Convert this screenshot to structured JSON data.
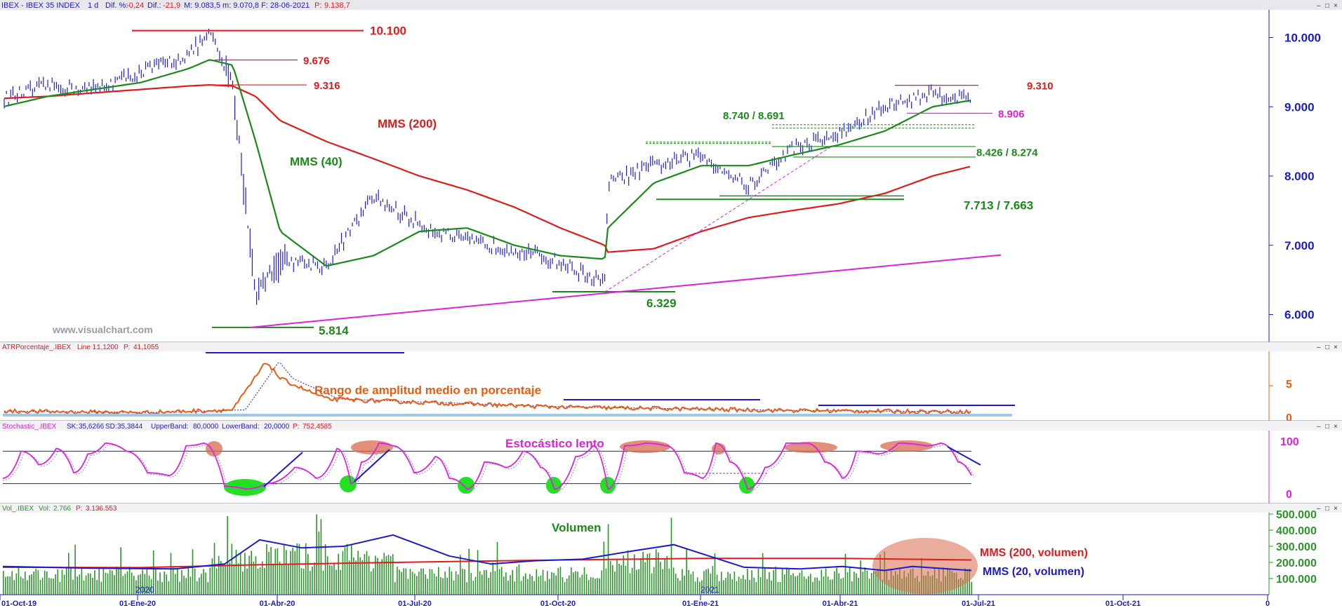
{
  "colors": {
    "price": "#1a1aee",
    "ma40": "#1a8a1a",
    "ma200": "#e11a1a",
    "trend": "#e020e0",
    "atr": "#f05a10",
    "blue": "#1a1ad0",
    "green_label": "#1a8a1a",
    "red_label": "#e11a1a",
    "magenta_label": "#e020e0",
    "axis": "#1a1ad0",
    "volume_bar": "#2a962a",
    "highlight_red": "#d9694c",
    "highlight_green": "#22e022",
    "watermark": "#9a9aa8"
  },
  "panels": {
    "price": {
      "header": {
        "name": "IBEX - IBEX 35 INDEX",
        "period": "1 d",
        "dif_pct_label": "Dif. %:",
        "dif_pct": "-0,24",
        "dif_label": "Dif.:",
        "dif": "-21,9",
        "ohlc": "M: 9.083,5  m: 9.070,8  F: 28-06-2021",
        "p_label": "P:",
        "p_value": "9.138,7"
      },
      "y_ticks": [
        "10.000",
        "9.000",
        "8.000",
        "7.000",
        "6.000"
      ],
      "levels": {
        "l1": "10.100",
        "l2": "9.676",
        "l3": "9.316",
        "l4": "9.310",
        "l5": "8.906",
        "l6": "8.740 / 8.691",
        "l7": "8.426 / 8.274",
        "l8": "7.713 / 7.663",
        "l9": "6.329",
        "l10": "5.814"
      },
      "labels": {
        "ma200": "MMS (200)",
        "ma40": "MMS (40)"
      },
      "watermark": "www.visualchart.com"
    },
    "atr": {
      "header": {
        "name": "ATRPorcentaje_.IBEX",
        "line_label": "Line 1:",
        "line_value": "1,1200",
        "p_label": "P:",
        "p_value": "41,1055"
      },
      "y_ticks": [
        "5",
        "0"
      ],
      "annotation": "Rango de amplitud medio en porcentaje"
    },
    "stoch": {
      "header": {
        "name": "Stochastic_.IBEX",
        "sk_label": "SK:",
        "sk": "35,6266",
        "sd_label": "SD:",
        "sd": "35,3844",
        "ub_label": "UpperBand:",
        "ub": "80,0000",
        "lb_label": "LowerBand:",
        "lb": "20,0000",
        "p_label": "P:",
        "p_value": "752,4585"
      },
      "y_ticks": [
        "100",
        "0"
      ],
      "annotation": "Estocástico lento"
    },
    "volume": {
      "header": {
        "name": "Vol_.IBEX",
        "vol_label": "Vol:",
        "vol": "2.766",
        "p_label": "P:",
        "p_value": "3.136.553"
      },
      "y_ticks": [
        "500.000",
        "400.000",
        "300.000",
        "200.000",
        "100.000"
      ],
      "annotation": "Volumen",
      "ma200_label": "MMS (200, volumen)",
      "ma20_label": "MMS (20, volumen)",
      "year_2020": "2020",
      "year_2021": "2021"
    }
  },
  "x_axis": {
    "ticks": [
      "01-Oct-19",
      "01-Ene-20",
      "01-Abr-20",
      "01-Jul-20",
      "01-Oct-20",
      "01-Ene-21",
      "01-Abr-21",
      "01-Jul-21",
      "01-Oct-21",
      "0"
    ]
  },
  "chart_data": [
    {
      "type": "line",
      "title": "IBEX - IBEX 35 INDEX",
      "x": [
        "01-Oct-19",
        "01-Nov-19",
        "01-Dic-19",
        "01-Ene-20",
        "01-Feb-20",
        "15-Feb-20",
        "01-Mar-20",
        "16-Mar-20",
        "01-Abr-20",
        "01-May-20",
        "01-Jun-20",
        "01-Jul-20",
        "01-Ago-20",
        "01-Sep-20",
        "01-Oct-20",
        "30-Oct-20",
        "01-Nov-20",
        "01-Dic-20",
        "01-Ene-21",
        "01-Feb-21",
        "01-Mar-21",
        "01-Abr-21",
        "01-May-21",
        "01-Jun-21",
        "28-Jun-21"
      ],
      "series": [
        {
          "name": "IBEX",
          "values": [
            9100,
            9300,
            9250,
            9500,
            9750,
            10050,
            9300,
            6300,
            6800,
            6700,
            7700,
            7300,
            7050,
            6950,
            6750,
            6450,
            7900,
            8150,
            8300,
            7850,
            8400,
            8600,
            9000,
            9200,
            9100
          ]
        },
        {
          "name": "MMS (40)",
          "values": [
            8990,
            9150,
            9250,
            9350,
            9550,
            9680,
            9600,
            8500,
            7200,
            6700,
            6850,
            7200,
            7250,
            7000,
            6850,
            6800,
            7250,
            7900,
            8150,
            8150,
            8300,
            8450,
            8650,
            9000,
            9100
          ]
        },
        {
          "name": "MMS (200)",
          "values": [
            9120,
            9150,
            9200,
            9250,
            9300,
            9316,
            9300,
            9150,
            8800,
            8500,
            8250,
            8000,
            7800,
            7550,
            7250,
            7000,
            6900,
            6950,
            7200,
            7400,
            7500,
            7600,
            7750,
            8000,
            8150
          ]
        }
      ],
      "ylim": [
        5600,
        10400
      ],
      "levels": [
        10100,
        9676,
        9316,
        9310,
        8906,
        8740,
        8691,
        8426,
        8274,
        7713,
        7663,
        6329,
        5814
      ],
      "ylabel": ""
    },
    {
      "type": "line",
      "title": "ATRPorcentaje_.IBEX",
      "x": [
        "01-Oct-19",
        "01-Ene-20",
        "01-Mar-20",
        "23-Mar-20",
        "01-Abr-20",
        "01-May-20",
        "01-Jul-20",
        "01-Oct-20",
        "01-Dic-20",
        "01-Mar-21",
        "28-Jun-21"
      ],
      "series": [
        {
          "name": "ATRPorcentaje_.IBEX",
          "values": [
            1.2,
            1.0,
            1.4,
            8.5,
            6.0,
            3.0,
            2.5,
            1.8,
            1.6,
            1.3,
            1.1
          ]
        }
      ],
      "ylim": [
        0,
        10
      ]
    },
    {
      "type": "line",
      "title": "Stochastic_.IBEX",
      "series": [
        {
          "name": "SK",
          "values": [
            35.6
          ]
        },
        {
          "name": "SD",
          "values": [
            35.4
          ]
        }
      ],
      "ylim": [
        0,
        100
      ],
      "bands": [
        80,
        20
      ]
    },
    {
      "type": "bar",
      "title": "Vol_.IBEX",
      "series": [
        {
          "name": "Vol",
          "values": [
            2766
          ]
        }
      ],
      "ylim": [
        0,
        500000
      ],
      "ma": [
        {
          "name": "MMS (200, volumen)",
          "value": 200000
        },
        {
          "name": "MMS (20, volumen)",
          "value": 160000
        }
      ]
    }
  ]
}
